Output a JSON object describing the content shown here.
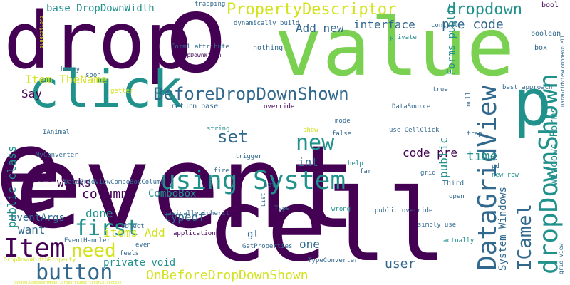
{
  "palette": {
    "dark_purple": "#440154",
    "blue": "#31688e",
    "teal": "#21918c",
    "green": "#5ec962",
    "lime": "#aadc32",
    "yellow": "#fde725",
    "gray": "#808080"
  },
  "words": [
    {
      "text": "event",
      "color": "#440154"
    },
    {
      "text": "value",
      "color": "#7ad151"
    },
    {
      "text": "cell",
      "color": "#440154"
    },
    {
      "text": "e",
      "color": "#440154"
    },
    {
      "text": "o",
      "color": "#440154"
    },
    {
      "text": "drop",
      "color": "#440154"
    },
    {
      "text": "click",
      "color": "#21918c"
    },
    {
      "text": "p",
      "color": "#21918c"
    },
    {
      "text": "DataGridView",
      "color": "#31688e"
    },
    {
      "text": "dropDownShown",
      "color": "#21918c"
    },
    {
      "text": "using System",
      "color": "#21918c"
    },
    {
      "text": "BeforeDropDownShown",
      "color": "#31688e"
    },
    {
      "text": "Item",
      "color": "#440154"
    },
    {
      "text": "button",
      "color": "#31688e"
    },
    {
      "text": "PropertyDescriptor",
      "color": "#d2e21b"
    },
    {
      "text": "first",
      "color": "#21918c"
    },
    {
      "text": "new",
      "color": "#21918c"
    },
    {
      "text": "set",
      "color": "#31688e"
    },
    {
      "text": "need",
      "color": "#d2e21b"
    },
    {
      "text": "ICamel",
      "color": "#31688e"
    },
    {
      "text": "OnBeforeDropDownShown",
      "color": "#d2e21b"
    },
    {
      "text": "dropdown",
      "color": "#21918c"
    },
    {
      "text": "interface",
      "color": "#31688e"
    },
    {
      "text": "pre code",
      "color": "#31688e"
    },
    {
      "text": "Add new",
      "color": "#31688e"
    },
    {
      "text": "Item TheName",
      "color": "#d2e21b"
    },
    {
      "text": "Say",
      "color": "#440154"
    },
    {
      "text": "column",
      "color": "#440154"
    },
    {
      "text": "List lt",
      "color": "#440154"
    },
    {
      "text": "works",
      "color": "#440154"
    },
    {
      "text": "done",
      "color": "#21918c"
    },
    {
      "text": "public class",
      "color": "#21918c"
    },
    {
      "text": "time",
      "color": "#21918c"
    },
    {
      "text": "code pre",
      "color": "#440154"
    },
    {
      "text": "int",
      "color": "#31688e"
    },
    {
      "text": "ComboBox",
      "color": "#21918c"
    },
    {
      "text": "EventArgs",
      "color": "#31688e"
    },
    {
      "text": "items Add",
      "color": "#d2e21b"
    },
    {
      "text": "want",
      "color": "#31688e"
    },
    {
      "text": "typeof",
      "color": "#31688e"
    },
    {
      "text": "gt",
      "color": "#31688e"
    },
    {
      "text": "one",
      "color": "#31688e"
    },
    {
      "text": "user",
      "color": "#31688e"
    },
    {
      "text": "private void",
      "color": "#21918c"
    },
    {
      "text": "public",
      "color": "#21918c"
    },
    {
      "text": "System Windows",
      "color": "#31688e"
    },
    {
      "text": "Windows Forms",
      "color": "#21918c"
    },
    {
      "text": "Forms public",
      "color": "#21918c"
    },
    {
      "text": "base DropDownWidth",
      "color": "#21918c"
    },
    {
      "text": "trapping",
      "color": "#31688e"
    },
    {
      "text": "dynamically build",
      "color": "#31688e"
    },
    {
      "text": "bool",
      "color": "#440154"
    },
    {
      "text": "context",
      "color": "#31688e"
    },
    {
      "text": "boolean",
      "color": "#31688e"
    },
    {
      "text": "private",
      "color": "#21918c"
    },
    {
      "text": "box",
      "color": "#31688e"
    },
    {
      "text": "nothing",
      "color": "#31688e"
    },
    {
      "text": "Form1",
      "color": "#31688e"
    },
    {
      "text": "attribute",
      "color": "#31688e"
    },
    {
      "text": "DropDownWidth",
      "color": "#440154"
    },
    {
      "text": "hacky",
      "color": "#31688e"
    },
    {
      "text": "soon",
      "color": "#31688e"
    },
    {
      "text": "getter",
      "color": "#d2e21b"
    },
    {
      "text": "return base",
      "color": "#31688e"
    },
    {
      "text": "override",
      "color": "#440154"
    },
    {
      "text": "DataSource",
      "color": "#31688e"
    },
    {
      "text": "true",
      "color": "#31688e"
    },
    {
      "text": "best approach",
      "color": "#31688e"
    },
    {
      "text": "null",
      "color": "#31688e"
    },
    {
      "text": "IAnimal",
      "color": "#31688e"
    },
    {
      "text": "string",
      "color": "#21918c"
    },
    {
      "text": "mode",
      "color": "#31688e"
    },
    {
      "text": "show",
      "color": "#d2e21b"
    },
    {
      "text": "use CellClick",
      "color": "#31688e"
    },
    {
      "text": "trap",
      "color": "#31688e"
    },
    {
      "text": "false",
      "color": "#31688e"
    },
    {
      "text": "MyConverter",
      "color": "#31688e"
    },
    {
      "text": "trigger",
      "color": "#31688e"
    },
    {
      "text": "fire",
      "color": "#31688e"
    },
    {
      "text": "help",
      "color": "#21918c"
    },
    {
      "text": "far",
      "color": "#31688e"
    },
    {
      "text": "grid",
      "color": "#31688e"
    },
    {
      "text": "pd",
      "color": "#31688e"
    },
    {
      "text": "new row",
      "color": "#21918c"
    },
    {
      "text": "Third",
      "color": "#31688e"
    },
    {
      "text": "DataGridViewComboBoxColumn",
      "color": "#31688e"
    },
    {
      "text": "net",
      "color": "#31688e"
    },
    {
      "text": "Type",
      "color": "#31688e"
    },
    {
      "text": "wrong",
      "color": "#21918c"
    },
    {
      "text": "public override",
      "color": "#31688e"
    },
    {
      "text": "open",
      "color": "#31688e"
    },
    {
      "text": "basically inherit",
      "color": "#31688e"
    },
    {
      "text": "simply use",
      "color": "#31688e"
    },
    {
      "text": "actually",
      "color": "#21918c"
    },
    {
      "text": "object",
      "color": "#31688e"
    },
    {
      "text": "application",
      "color": "#440154"
    },
    {
      "text": "EventHandler",
      "color": "#31688e"
    },
    {
      "text": "GetProperties",
      "color": "#31688e"
    },
    {
      "text": "even",
      "color": "#31688e"
    },
    {
      "text": "feels",
      "color": "#31688e"
    },
    {
      "text": "TypeConverter",
      "color": "#31688e"
    },
    {
      "text": "DropDownWidthProperty",
      "color": "#d2e21b"
    },
    {
      "text": "List",
      "color": "#31688e"
    },
    {
      "text": "grid view",
      "color": "#31688e"
    },
    {
      "text": "DataGridViewComboBoxCell",
      "color": "#31688e"
    },
    {
      "text": "suggestions",
      "color": "#d2e21b"
    },
    {
      "text": "System.ComponentModel.PropertyDescriptorCollection",
      "color": "#d2e21b"
    }
  ]
}
